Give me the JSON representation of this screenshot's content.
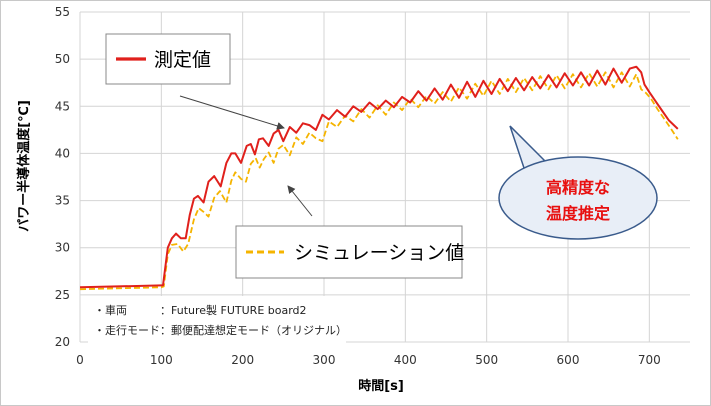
{
  "chart_data": {
    "type": "line",
    "xlabel": "時間[s]",
    "ylabel": "パワー半導体温度[℃]",
    "xlim": [
      0,
      750
    ],
    "ylim": [
      20,
      55
    ],
    "xticks": [
      0,
      100,
      200,
      300,
      400,
      500,
      600,
      700
    ],
    "yticks": [
      20,
      25,
      30,
      35,
      40,
      45,
      50,
      55
    ],
    "grid": true,
    "series": [
      {
        "name": "測定値",
        "color": "#e0201c",
        "style": "solid",
        "x": [
          0,
          100,
          102,
          108,
          113,
          118,
          124,
          130,
          135,
          140,
          145,
          152,
          158,
          165,
          173,
          180,
          186,
          191,
          198,
          205,
          210,
          215,
          220,
          225,
          232,
          238,
          244,
          250,
          258,
          266,
          274,
          282,
          290,
          298,
          306,
          316,
          326,
          336,
          346,
          356,
          366,
          376,
          386,
          396,
          406,
          416,
          426,
          436,
          446,
          456,
          466,
          476,
          486,
          496,
          506,
          516,
          526,
          536,
          546,
          556,
          566,
          576,
          586,
          596,
          606,
          616,
          626,
          636,
          646,
          656,
          666,
          676,
          684,
          690,
          694,
          700,
          708,
          716,
          724,
          735
        ],
        "y": [
          25.8,
          26.0,
          26.0,
          30.0,
          31.0,
          31.5,
          31.0,
          31.0,
          33.5,
          35.2,
          35.5,
          34.8,
          37.0,
          37.6,
          36.5,
          39.0,
          40.0,
          40.0,
          39.0,
          40.8,
          41.0,
          39.9,
          41.5,
          41.6,
          40.8,
          42.1,
          42.5,
          41.3,
          42.8,
          42.2,
          43.2,
          43.0,
          42.5,
          44.1,
          43.6,
          44.6,
          43.9,
          45.0,
          44.4,
          45.4,
          44.7,
          45.6,
          44.9,
          46.0,
          45.4,
          46.6,
          45.6,
          46.9,
          45.7,
          47.3,
          45.9,
          47.6,
          46.0,
          47.7,
          46.3,
          47.9,
          46.6,
          48.0,
          46.7,
          48.1,
          46.9,
          48.3,
          47.0,
          48.5,
          47.2,
          48.6,
          47.2,
          48.8,
          47.3,
          49.0,
          47.5,
          49.0,
          49.2,
          48.6,
          47.3,
          46.5,
          45.5,
          44.5,
          43.5,
          42.6
        ]
      },
      {
        "name": "シミュレーション値",
        "color": "#f5b400",
        "style": "dashed",
        "x": [
          0,
          100,
          103,
          108,
          113,
          120,
          127,
          133,
          140,
          146,
          152,
          158,
          165,
          172,
          180,
          186,
          191,
          198,
          204,
          210,
          216,
          221,
          226,
          232,
          238,
          244,
          250,
          258,
          266,
          274,
          282,
          290,
          298,
          306,
          316,
          326,
          336,
          346,
          356,
          366,
          376,
          386,
          396,
          406,
          416,
          426,
          436,
          446,
          456,
          466,
          476,
          486,
          496,
          506,
          516,
          526,
          536,
          546,
          556,
          566,
          576,
          586,
          596,
          606,
          616,
          626,
          636,
          646,
          656,
          666,
          676,
          684,
          690,
          696,
          702,
          710,
          718,
          726,
          735
        ],
        "y": [
          25.6,
          25.8,
          25.9,
          29.3,
          30.3,
          30.4,
          29.6,
          30.4,
          33.0,
          34.2,
          33.8,
          33.3,
          35.3,
          36.0,
          34.8,
          37.1,
          38.0,
          37.3,
          37.0,
          38.9,
          39.5,
          38.5,
          39.4,
          40.1,
          39.0,
          40.5,
          40.9,
          39.8,
          41.7,
          41.0,
          42.2,
          41.6,
          41.3,
          43.4,
          42.8,
          44.0,
          43.4,
          44.7,
          43.8,
          45.1,
          44.1,
          45.4,
          44.6,
          45.8,
          44.9,
          46.1,
          45.3,
          46.5,
          45.5,
          47.0,
          45.8,
          47.4,
          46.1,
          47.7,
          46.3,
          47.9,
          46.5,
          48.0,
          46.7,
          48.2,
          46.8,
          48.3,
          46.9,
          48.4,
          47.0,
          48.5,
          47.1,
          48.6,
          47.0,
          48.6,
          47.1,
          48.4,
          46.8,
          46.4,
          45.8,
          44.7,
          43.7,
          42.7,
          41.5
        ]
      }
    ],
    "annotations": {
      "legend_measured": "測定値",
      "legend_simulated": "シミュレーション値",
      "callout_line1": "高精度な",
      "callout_line2": "温度推定",
      "note_vehicle": "・車両　　　：Future製 FUTURE board2",
      "note_mode": "・走行モード：郵便配達想定モード（オリジナル）"
    }
  },
  "colors": {
    "measured": "#e0201c",
    "simulated": "#f5b400",
    "callout_text": "#e81010",
    "callout_fill": "#e8eef7",
    "callout_border": "#3a5b8c",
    "grid": "#d4d4d4"
  }
}
